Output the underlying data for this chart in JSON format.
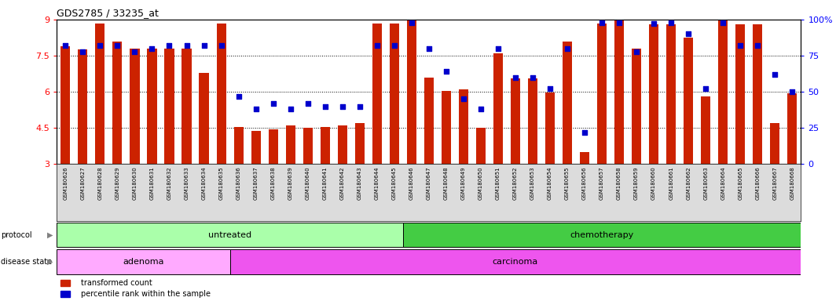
{
  "title": "GDS2785 / 33235_at",
  "samples": [
    "GSM180626",
    "GSM180627",
    "GSM180628",
    "GSM180629",
    "GSM180630",
    "GSM180631",
    "GSM180632",
    "GSM180633",
    "GSM180634",
    "GSM180635",
    "GSM180636",
    "GSM180637",
    "GSM180638",
    "GSM180639",
    "GSM180640",
    "GSM180641",
    "GSM180642",
    "GSM180643",
    "GSM180644",
    "GSM180645",
    "GSM180646",
    "GSM180647",
    "GSM180648",
    "GSM180649",
    "GSM180650",
    "GSM180651",
    "GSM180652",
    "GSM180653",
    "GSM180654",
    "GSM180655",
    "GSM180656",
    "GSM180657",
    "GSM180658",
    "GSM180659",
    "GSM180660",
    "GSM180661",
    "GSM180662",
    "GSM180663",
    "GSM180664",
    "GSM180665",
    "GSM180666",
    "GSM180667",
    "GSM180668"
  ],
  "transformed_count": [
    7.9,
    7.75,
    8.85,
    8.1,
    7.8,
    7.8,
    7.8,
    7.8,
    6.8,
    8.85,
    4.55,
    4.37,
    4.45,
    4.62,
    4.52,
    4.55,
    4.6,
    4.7,
    8.85,
    8.85,
    8.95,
    6.6,
    6.05,
    6.1,
    4.5,
    7.6,
    6.55,
    6.55,
    5.98,
    8.1,
    3.5,
    8.85,
    8.95,
    7.8,
    8.8,
    8.8,
    8.25,
    5.8,
    8.95,
    8.8,
    8.8,
    4.7,
    5.95
  ],
  "percentile_rank": [
    82,
    78,
    82,
    82,
    78,
    80,
    82,
    82,
    82,
    82,
    47,
    38,
    42,
    38,
    42,
    40,
    40,
    40,
    82,
    82,
    98,
    80,
    64,
    45,
    38,
    80,
    60,
    60,
    52,
    80,
    22,
    98,
    98,
    78,
    97,
    98,
    90,
    52,
    98,
    82,
    82,
    62,
    50
  ],
  "ymin": 3,
  "ymax": 9,
  "yticks_left": [
    3,
    4.5,
    6,
    7.5,
    9
  ],
  "yticks_left_labels": [
    "3",
    "4.5",
    "6",
    "7.5",
    "9"
  ],
  "yticks_right": [
    0,
    25,
    50,
    75,
    100
  ],
  "yticks_right_labels": [
    "0",
    "25",
    "50",
    "75",
    "100%"
  ],
  "bar_color": "#CC2200",
  "dot_color": "#0000CC",
  "protocol_groups": [
    {
      "label": "untreated",
      "start": 0,
      "end": 19,
      "color": "#AAFFAA"
    },
    {
      "label": "chemotherapy",
      "start": 20,
      "end": 42,
      "color": "#44CC44"
    }
  ],
  "disease_groups": [
    {
      "label": "adenoma",
      "start": 0,
      "end": 9,
      "color": "#FFAAFF"
    },
    {
      "label": "carcinoma",
      "start": 10,
      "end": 42,
      "color": "#EE55EE"
    }
  ],
  "legend_items": [
    {
      "label": "transformed count",
      "color": "#CC2200"
    },
    {
      "label": "percentile rank within the sample",
      "color": "#0000CC"
    }
  ],
  "xtick_bg": "#DCDCDC",
  "grid_lines": [
    4.5,
    6.0,
    7.5
  ]
}
